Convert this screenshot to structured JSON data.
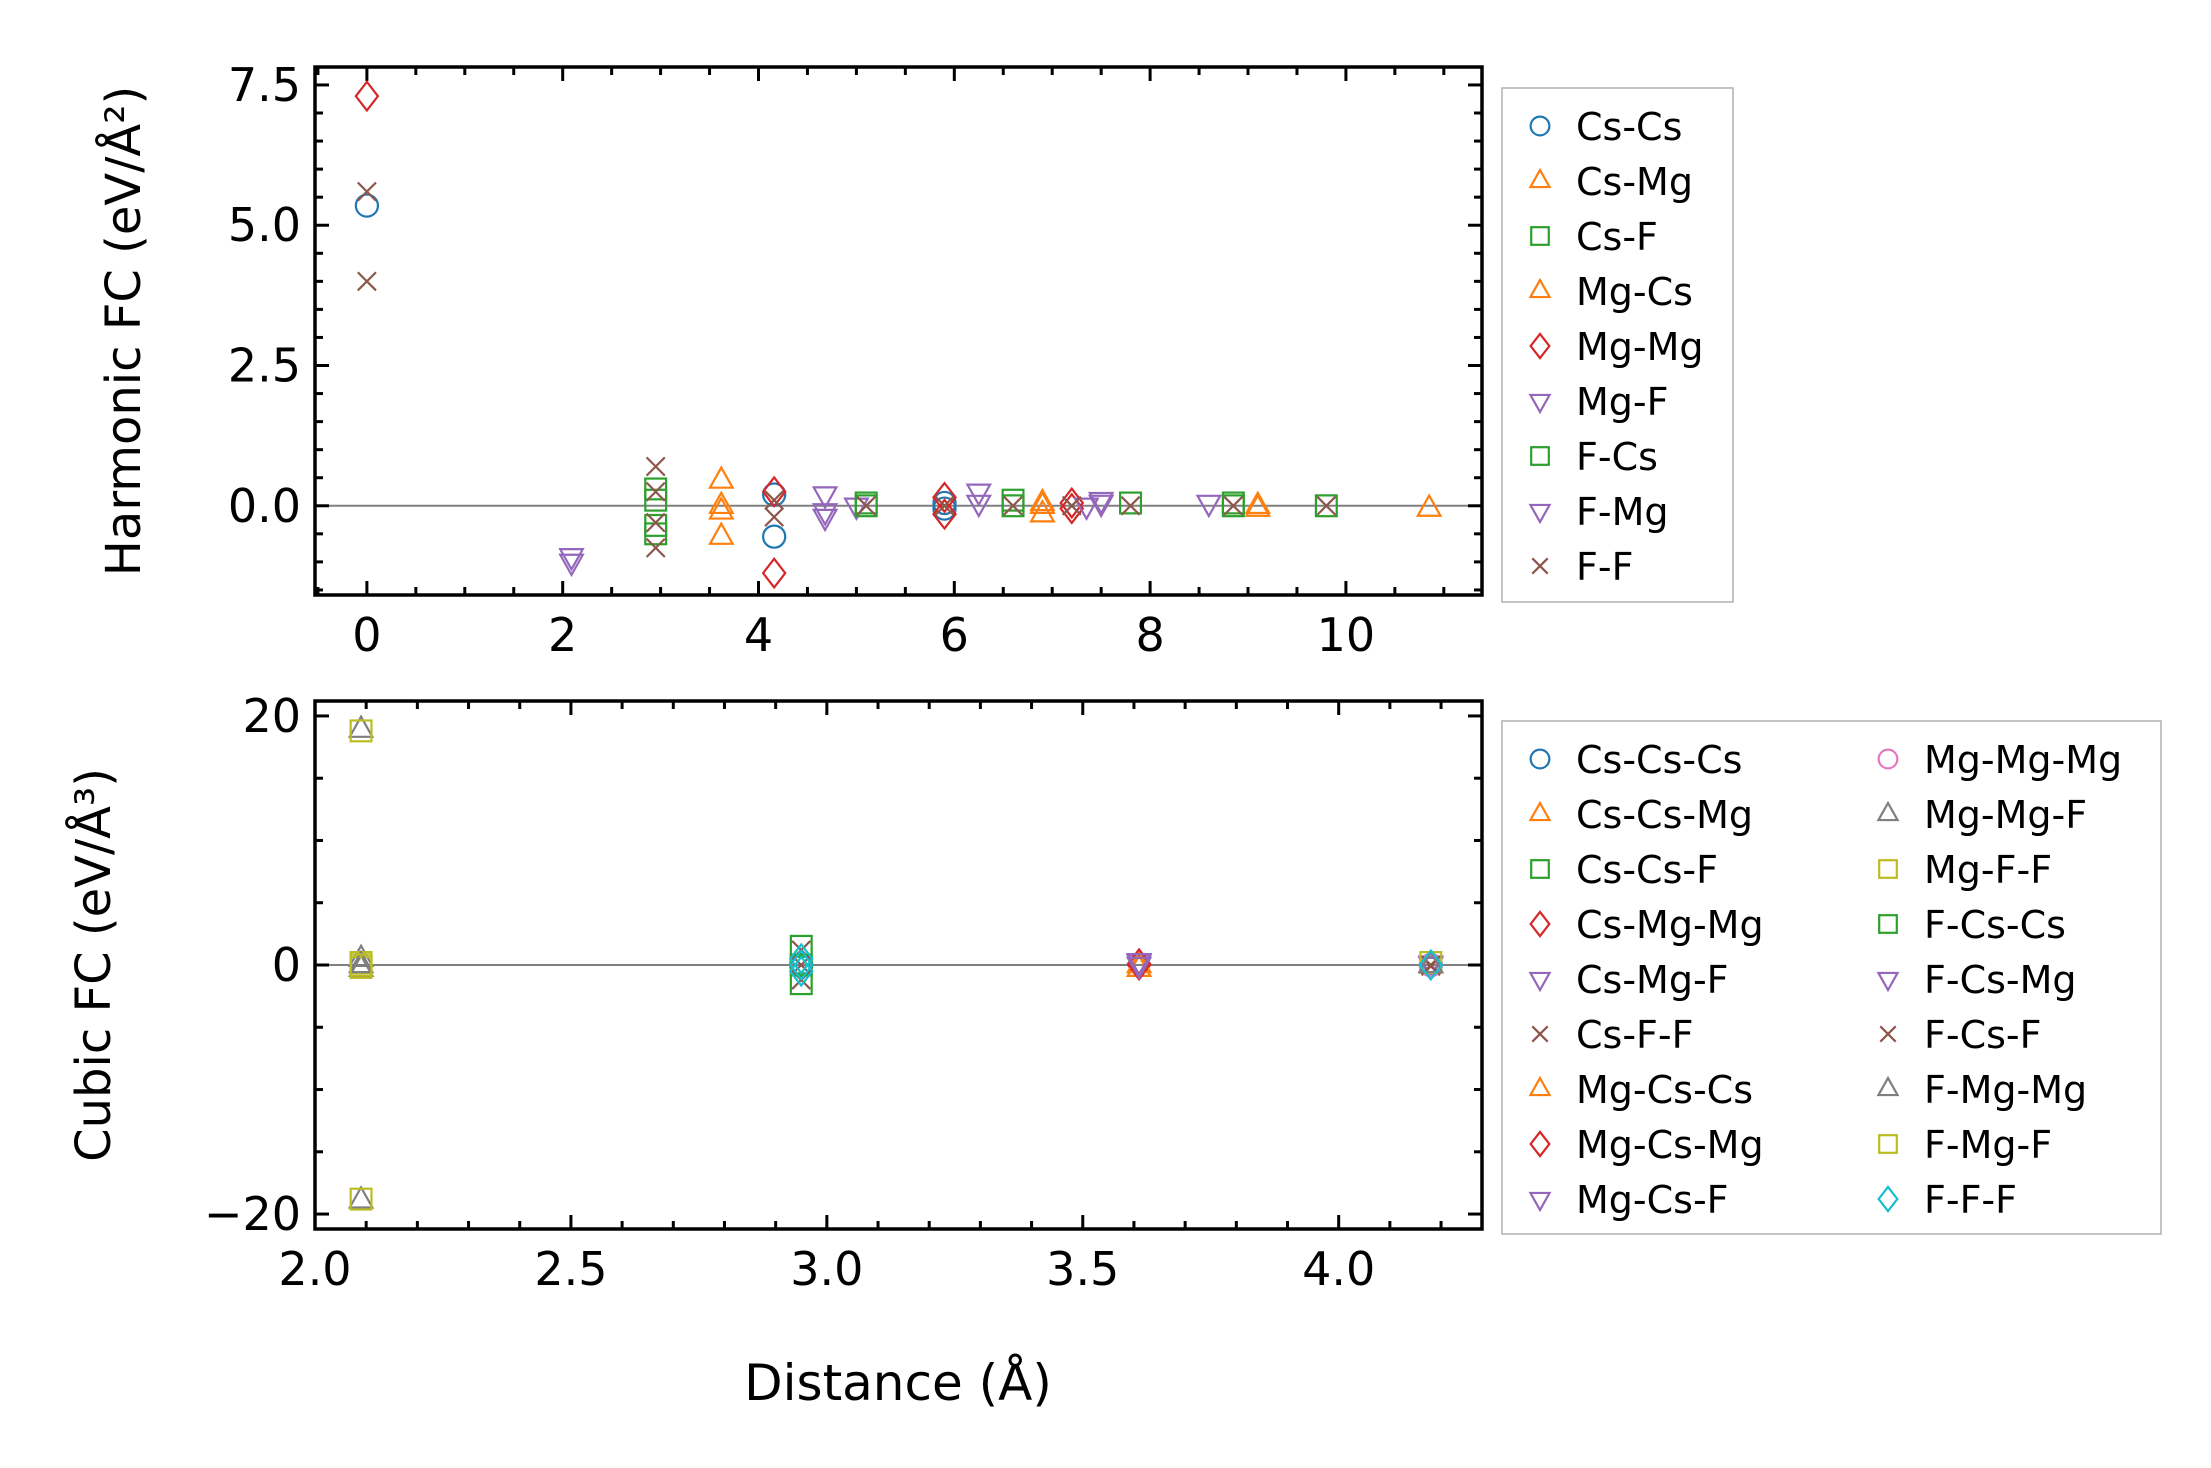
{
  "colors": {
    "blue": "#1f77b4",
    "orange": "#ff7f0e",
    "green": "#2ca02c",
    "red": "#d62728",
    "purple": "#9467bd",
    "brown": "#8c564b",
    "pink": "#e377c2",
    "gray": "#7f7f7f",
    "olive": "#bcbd22",
    "cyan": "#17becf"
  },
  "chart_data": [
    {
      "type": "scatter",
      "title": "",
      "xlabel": "",
      "ylabel": "Harmonic FC (eV/Å²)",
      "xlim": [
        -0.53,
        11.39
      ],
      "ylim": [
        -1.59,
        7.82
      ],
      "xticks": [
        0,
        2,
        4,
        6,
        8,
        10
      ],
      "xtick_labels": [
        "0",
        "2",
        "4",
        "6",
        "8",
        "10"
      ],
      "yticks": [
        0,
        2.5,
        5,
        7.5
      ],
      "ytick_labels": [
        "0.0",
        "2.5",
        "5.0",
        "7.5"
      ],
      "legend_position": "outside-right",
      "series": [
        {
          "name": "Cs-Cs",
          "marker": "o",
          "color": "#1f77b4",
          "x": [
            0,
            4.16,
            4.16,
            5.9,
            5.9
          ],
          "y": [
            5.35,
            -0.55,
            0.2,
            0.05,
            -0.05
          ]
        },
        {
          "name": "Cs-Mg",
          "marker": "^",
          "color": "#ff7f0e",
          "x": [
            3.62,
            3.62,
            3.62,
            6.9,
            6.9,
            9.1,
            10.85
          ],
          "y": [
            0.45,
            -0.1,
            -0.55,
            0.0,
            -0.15,
            -0.05,
            -0.05
          ]
        },
        {
          "name": "Cs-F",
          "marker": "s",
          "color": "#2ca02c",
          "x": [
            2.95,
            2.95,
            5.1,
            6.6,
            7.8,
            8.85,
            9.8
          ],
          "y": [
            0.3,
            -0.35,
            0.05,
            0.1,
            0.05,
            0.05,
            0.0
          ]
        },
        {
          "name": "Mg-Cs",
          "marker": "^",
          "color": "#ff7f0e",
          "x": [
            3.62,
            6.9,
            9.1
          ],
          "y": [
            0.0,
            0.05,
            0.0
          ]
        },
        {
          "name": "Mg-Mg",
          "marker": "D",
          "color": "#d62728",
          "x": [
            0,
            4.16,
            4.16,
            5.9,
            5.9,
            7.2,
            7.2
          ],
          "y": [
            7.3,
            0.25,
            -1.2,
            0.15,
            -0.15,
            0.05,
            -0.05
          ]
        },
        {
          "name": "Mg-F",
          "marker": "v",
          "color": "#9467bd",
          "x": [
            2.09,
            4.68,
            4.68,
            5.0,
            6.25,
            7.5,
            8.6
          ],
          "y": [
            -1.0,
            0.2,
            -0.2,
            0.0,
            0.25,
            0.1,
            0.05
          ]
        },
        {
          "name": "F-Cs",
          "marker": "s",
          "color": "#2ca02c",
          "x": [
            2.95,
            2.95,
            5.1,
            6.6,
            8.85
          ],
          "y": [
            -0.5,
            0.1,
            0.0,
            0.0,
            0.0
          ]
        },
        {
          "name": "F-Mg",
          "marker": "v",
          "color": "#9467bd",
          "x": [
            2.09,
            4.68,
            6.25,
            7.35,
            7.5
          ],
          "y": [
            -0.9,
            -0.1,
            0.05,
            0.0,
            0.05
          ]
        },
        {
          "name": "F-F",
          "marker": "x",
          "color": "#8c564b",
          "x": [
            0,
            0,
            2.95,
            2.95,
            2.95,
            2.95,
            4.16,
            4.16,
            5.1,
            5.9,
            6.6,
            7.2,
            7.8,
            8.85,
            9.8
          ],
          "y": [
            5.6,
            4.0,
            0.7,
            0.25,
            -0.3,
            -0.75,
            0.1,
            -0.2,
            0.0,
            0.0,
            0.0,
            0.0,
            0.0,
            0.0,
            0.0
          ]
        }
      ]
    },
    {
      "type": "scatter",
      "title": "",
      "xlabel": "Distance (Å)",
      "ylabel": "Cubic FC (eV/Å³)",
      "xlim": [
        2.0,
        4.28
      ],
      "ylim": [
        -21.2,
        21.2
      ],
      "xticks": [
        2.0,
        2.5,
        3.0,
        3.5,
        4.0
      ],
      "xtick_labels": [
        "2.0",
        "2.5",
        "3.0",
        "3.5",
        "4.0"
      ],
      "yticks": [
        -20,
        0,
        20
      ],
      "ytick_labels": [
        "−20",
        "0",
        "20"
      ],
      "legend_position": "outside-right",
      "series": [
        {
          "name": "Cs-Cs-Cs",
          "marker": "o",
          "color": "#1f77b4",
          "x": [
            2.95,
            4.18
          ],
          "y": [
            0.0,
            0.0
          ]
        },
        {
          "name": "Cs-Cs-Mg",
          "marker": "^",
          "color": "#ff7f0e",
          "x": [
            3.61,
            4.18
          ],
          "y": [
            -0.3,
            0.0
          ]
        },
        {
          "name": "Cs-Cs-F",
          "marker": "s",
          "color": "#2ca02c",
          "x": [
            2.95,
            2.95
          ],
          "y": [
            1.5,
            -1.5
          ]
        },
        {
          "name": "Cs-Mg-Mg",
          "marker": "D",
          "color": "#d62728",
          "x": [
            3.61
          ],
          "y": [
            0.0
          ]
        },
        {
          "name": "Cs-Mg-F",
          "marker": "v",
          "color": "#9467bd",
          "x": [
            3.61,
            4.18
          ],
          "y": [
            0.2,
            0.1
          ]
        },
        {
          "name": "Cs-F-F",
          "marker": "x",
          "color": "#8c564b",
          "x": [
            2.95,
            2.95,
            4.18
          ],
          "y": [
            1.2,
            -1.2,
            -0.1
          ]
        },
        {
          "name": "Mg-Cs-Cs",
          "marker": "^",
          "color": "#ff7f0e",
          "x": [
            3.61
          ],
          "y": [
            0.0
          ]
        },
        {
          "name": "Mg-Cs-Mg",
          "marker": "D",
          "color": "#d62728",
          "x": [
            3.61
          ],
          "y": [
            0.1
          ]
        },
        {
          "name": "Mg-Cs-F",
          "marker": "v",
          "color": "#9467bd",
          "x": [
            3.61,
            4.18
          ],
          "y": [
            0.3,
            0.0
          ]
        },
        {
          "name": "Mg-Mg-Mg",
          "marker": "o",
          "color": "#e377c2",
          "x": [
            4.18
          ],
          "y": [
            0.0
          ]
        },
        {
          "name": "Mg-Mg-F",
          "marker": "^",
          "color": "#7f7f7f",
          "x": [
            2.09,
            2.09,
            2.09,
            2.09,
            4.18
          ],
          "y": [
            18.9,
            -18.9,
            0.5,
            -0.3,
            0.0
          ]
        },
        {
          "name": "Mg-F-F",
          "marker": "s",
          "color": "#bcbd22",
          "x": [
            2.09,
            2.09,
            2.09,
            2.09,
            4.18
          ],
          "y": [
            18.8,
            -18.8,
            0.2,
            -0.2,
            0.2
          ]
        },
        {
          "name": "F-Cs-Cs",
          "marker": "s",
          "color": "#2ca02c",
          "x": [
            2.95
          ],
          "y": [
            0.0
          ]
        },
        {
          "name": "F-Cs-Mg",
          "marker": "v",
          "color": "#9467bd",
          "x": [
            3.61
          ],
          "y": [
            0.0
          ]
        },
        {
          "name": "F-Cs-F",
          "marker": "x",
          "color": "#8c564b",
          "x": [
            2.95,
            4.18
          ],
          "y": [
            0.0,
            0.0
          ]
        },
        {
          "name": "F-Mg-Mg",
          "marker": "^",
          "color": "#7f7f7f",
          "x": [
            2.09,
            4.18
          ],
          "y": [
            0.0,
            0.0
          ]
        },
        {
          "name": "F-Mg-F",
          "marker": "s",
          "color": "#bcbd22",
          "x": [
            2.09
          ],
          "y": [
            0.0
          ]
        },
        {
          "name": "F-F-F",
          "marker": "D",
          "color": "#17becf",
          "x": [
            2.95,
            2.95,
            2.95,
            4.18
          ],
          "y": [
            0.5,
            0.0,
            -0.5,
            0.0
          ]
        }
      ]
    }
  ]
}
